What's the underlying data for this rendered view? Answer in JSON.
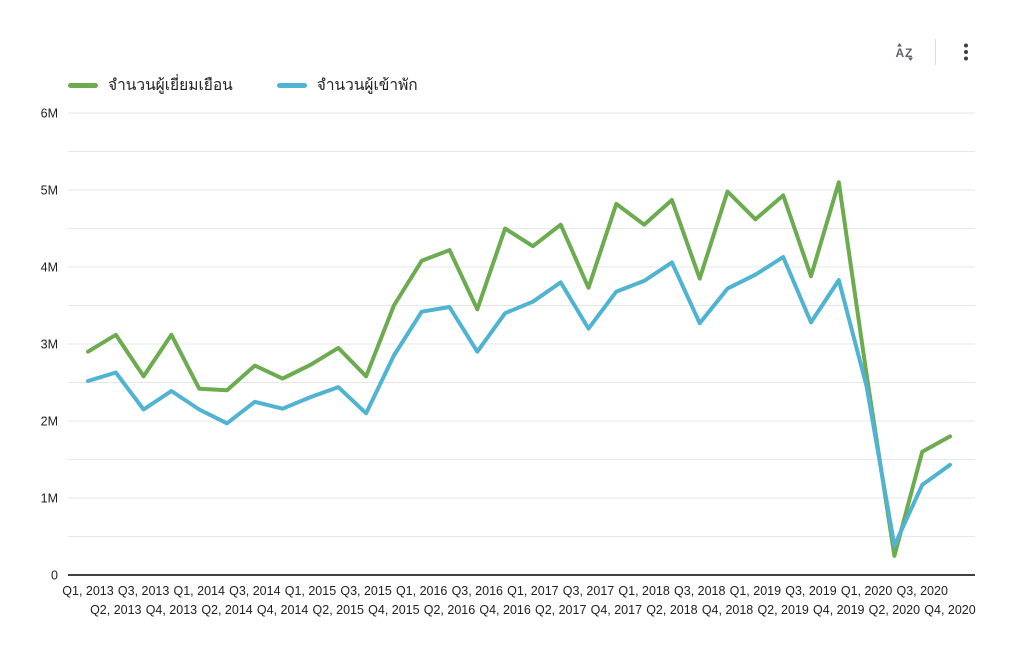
{
  "toolbar": {
    "sort_icon": "az-sort",
    "more_icon": "kebab-menu",
    "icon_color": "#5f6368"
  },
  "legend": {
    "position": "top-left",
    "items": [
      {
        "label": "จำนวนผู้เยี่ยมเยือน",
        "color": "#6cab4f"
      },
      {
        "label": "จำนวนผู้เข้าพัก",
        "color": "#4fb3d2"
      }
    ]
  },
  "chart_data": {
    "type": "line",
    "title": "",
    "xlabel": "",
    "ylabel": "",
    "unit": "M",
    "categories": [
      "Q1, 2013",
      "Q2, 2013",
      "Q3, 2013",
      "Q4, 2013",
      "Q1, 2014",
      "Q2, 2014",
      "Q3, 2014",
      "Q4, 2014",
      "Q1, 2015",
      "Q2, 2015",
      "Q3, 2015",
      "Q4, 2015",
      "Q1, 2016",
      "Q2, 2016",
      "Q3, 2016",
      "Q4, 2016",
      "Q1, 2017",
      "Q2, 2017",
      "Q3, 2017",
      "Q4, 2017",
      "Q1, 2018",
      "Q2, 2018",
      "Q3, 2018",
      "Q4, 2018",
      "Q1, 2019",
      "Q2, 2019",
      "Q3, 2019",
      "Q4, 2019",
      "Q1, 2020",
      "Q2, 2020",
      "Q3, 2020",
      "Q4, 2020"
    ],
    "series": [
      {
        "name": "จำนวนผู้เยี่ยมเยือน",
        "color": "#6cab4f",
        "values": [
          2.9,
          3.12,
          2.58,
          3.12,
          2.42,
          2.4,
          2.72,
          2.55,
          2.73,
          2.95,
          2.58,
          3.5,
          4.08,
          4.22,
          3.45,
          4.5,
          4.27,
          4.55,
          3.73,
          4.82,
          4.55,
          4.87,
          3.85,
          4.98,
          4.62,
          4.93,
          3.88,
          5.1,
          2.6,
          0.25,
          1.6,
          1.8
        ]
      },
      {
        "name": "จำนวนผู้เข้าพัก",
        "color": "#4fb3d2",
        "values": [
          2.52,
          2.63,
          2.15,
          2.39,
          2.15,
          1.97,
          2.25,
          2.16,
          2.31,
          2.44,
          2.1,
          2.85,
          3.42,
          3.48,
          2.9,
          3.4,
          3.55,
          3.8,
          3.2,
          3.68,
          3.82,
          4.06,
          3.27,
          3.72,
          3.9,
          4.13,
          3.28,
          3.83,
          2.45,
          0.38,
          1.17,
          1.43
        ]
      }
    ],
    "y_axis": {
      "min": 0,
      "max": 6,
      "major_step": 1,
      "minor_step": 0.5,
      "tick_labels": [
        "0",
        "1M",
        "2M",
        "3M",
        "4M",
        "5M",
        "6M"
      ]
    },
    "x_axis": {
      "stagger_labels": true
    },
    "grid": true,
    "legend_position": "top-left",
    "colors": {
      "grid": "#e7e7e7",
      "axis_line": "#424242",
      "text": "#202124"
    }
  }
}
